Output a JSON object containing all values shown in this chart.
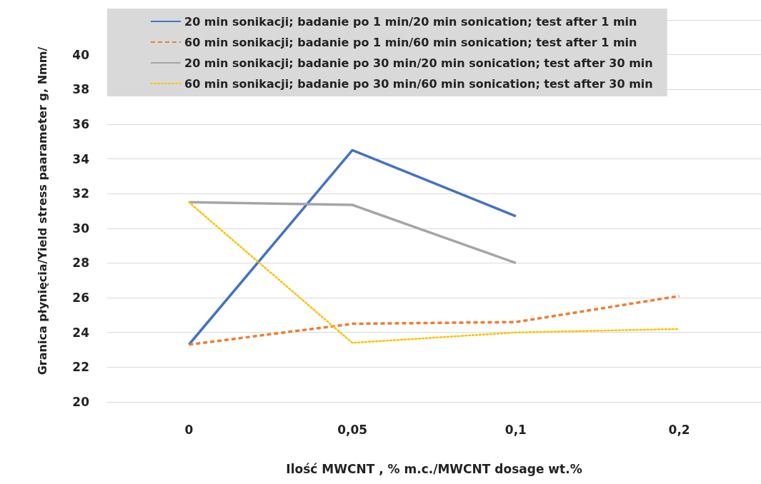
{
  "chart_data": {
    "type": "line",
    "xlabel": "Ilość MWCNT , % m.c./MWCNT dosage wt.%",
    "ylabel": "Granica płynięcia/Yield stress paarameter g, Nmm/",
    "categories": [
      "0",
      "0,05",
      "0,1",
      "0,2"
    ],
    "series": [
      {
        "name": "20 min sonikacji; badanie po 1 min/20 min sonication; test after 1 min",
        "color": "#4472c4",
        "line_style": "solid",
        "values": [
          23.3,
          34.5,
          30.7,
          null
        ]
      },
      {
        "name": "60 min sonikacji; badanie po 1 min/60 min sonication; test after 1 min",
        "color": "#ed7d31",
        "line_style": "dashed",
        "values": [
          23.3,
          24.5,
          24.6,
          26.1
        ]
      },
      {
        "name": "20 min sonikacji; badanie po 30 min/20 min sonication; test after 30 min",
        "color": "#a5a5a5",
        "line_style": "solid",
        "values": [
          31.5,
          31.35,
          28.0,
          null
        ]
      },
      {
        "name": "60 min sonikacji; badanie po 30 min/60 min sonication; test after 30 min",
        "color": "#ffc000",
        "line_style": "dotted",
        "values": [
          31.5,
          23.4,
          24.0,
          24.2
        ]
      }
    ],
    "ylim": [
      20,
      42
    ],
    "yticks": [
      20,
      22,
      24,
      26,
      28,
      30,
      32,
      34,
      36,
      38,
      40,
      {
        "value": 42,
        "label": null
      }
    ],
    "grid": "y",
    "legend": "top",
    "marker": "none"
  }
}
